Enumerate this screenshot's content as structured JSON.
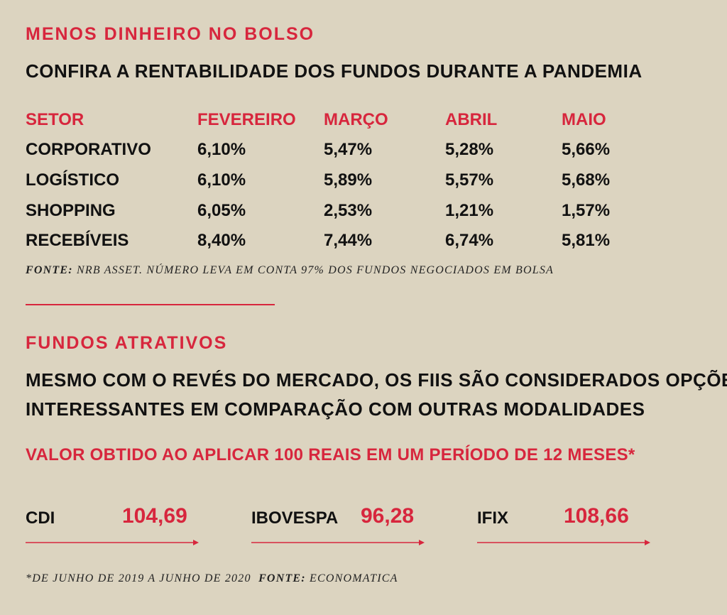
{
  "section1": {
    "kicker": "MENOS DINHEIRO NO BOLSO",
    "headline": "CONFIRA A RENTABILIDADE DOS FUNDOS DURANTE A PANDEMIA",
    "source_label": "FONTE:",
    "source_text": "NRB ASSET. NÚMERO LEVA EM CONTA 97% DOS FUNDOS NEGOCIADOS EM BOLSA"
  },
  "section2": {
    "kicker": "FUNDOS ATRATIVOS",
    "headline_line1": "MESMO COM O REVÉS DO MERCADO, OS FIIS SÃO CONSIDERADOS OPÇÕES",
    "headline_line2": "INTERESSANTES EM COMPARAÇÃO COM  OUTRAS MODALIDADES",
    "subtitle": "VALOR OBTIDO AO APLICAR 100 REAIS EM UM PERÍODO DE 12 MESES*",
    "footnote_text": "*DE JUNHO DE 2019 A JUNHO DE 2020",
    "footnote_source_label": "FONTE:",
    "footnote_source_text": "ECONOMATICA"
  },
  "colors": {
    "accent": "#d7263d",
    "background": "#dcd4c0",
    "text": "#111111"
  },
  "chart_data": [
    {
      "type": "table",
      "columns": [
        "SETOR",
        "FEVEREIRO",
        "MARÇO",
        "ABRIL",
        "MAIO"
      ],
      "rows": [
        [
          "CORPORATIVO",
          "6,10%",
          "5,47%",
          "5,28%",
          "5,66%"
        ],
        [
          "LOGÍSTICO",
          "6,10%",
          "5,89%",
          "5,57%",
          "5,68%"
        ],
        [
          "SHOPPING",
          "6,05%",
          "2,53%",
          "1,21%",
          "1,57%"
        ],
        [
          "RECEBÍVEIS",
          "8,40%",
          "7,44%",
          "6,74%",
          "5,81%"
        ]
      ]
    },
    {
      "type": "table",
      "items": [
        {
          "label": "CDI",
          "value": "104,69"
        },
        {
          "label": "IBOVESPA",
          "value": "96,28"
        },
        {
          "label": "IFIX",
          "value": "108,66"
        }
      ]
    }
  ]
}
